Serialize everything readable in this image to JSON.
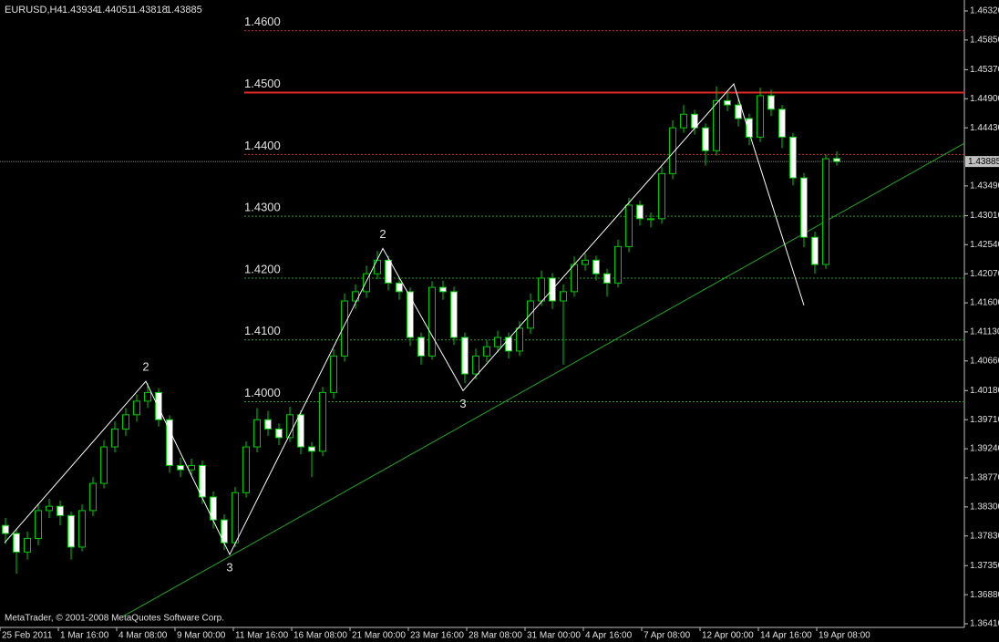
{
  "chart_data": {
    "type": "candlestick",
    "symbol": "EURUSD,H4",
    "footer": "MetaTrader, © 2001-2008 MetaQuotes Software Corp.",
    "up_color": "#000000",
    "down_color": "#ffffff",
    "wick_color": "#00c800",
    "x": [
      1.5,
      4.5,
      7.5,
      10.5,
      13.5,
      16.5,
      19.5,
      22.5,
      25.5,
      28.5,
      31.5,
      34.5,
      37.5,
      40.5,
      43.5,
      46.5,
      49.5,
      52.5,
      55.5,
      58.5,
      61.5,
      64.5,
      67.5,
      70.5,
      73.5,
      76.5,
      79.5,
      82.5,
      85.5,
      88.5,
      91.5,
      94.5,
      97.5,
      100.5,
      103.5,
      106.5,
      109.5,
      112.5,
      115.5,
      118.5,
      121.5,
      124.5,
      127.5,
      130.5,
      133.5,
      136.5,
      139.5,
      142.5,
      145.5,
      148.5,
      151.5,
      154.5,
      157.5,
      160.5,
      163.5,
      166.5,
      169.5,
      172.5,
      175.5,
      178.5,
      181.5,
      184.5,
      187.5,
      190.5,
      193.5,
      196.5,
      199.5,
      202.5,
      205.5,
      208.5,
      211.5,
      214.5,
      217.5,
      220.5,
      223.5,
      226.5,
      229.5
    ],
    "open": [
      1.38,
      1.3787,
      1.3757,
      1.3779,
      1.3824,
      1.3831,
      1.3816,
      1.3765,
      1.3824,
      1.3868,
      1.3927,
      1.3956,
      1.3979,
      1.4001,
      1.4015,
      1.3971,
      1.3897,
      1.389,
      1.3897,
      1.3846,
      1.3809,
      1.3772,
      1.3853,
      1.3927,
      1.3971,
      1.3956,
      1.3942,
      1.3979,
      1.3927,
      1.392,
      1.4015,
      1.4074,
      1.4163,
      1.4178,
      1.4207,
      1.4229,
      1.4192,
      1.4178,
      1.4104,
      1.4074,
      1.4185,
      1.4178,
      1.4104,
      1.4045,
      1.4074,
      1.4089,
      1.4104,
      1.4082,
      1.4119,
      1.4163,
      1.42,
      1.4163,
      1.4178,
      1.4222,
      1.4229,
      1.4207,
      1.4192,
      1.4251,
      1.4318,
      1.4296,
      1.4296,
      1.4369,
      1.4443,
      1.4465,
      1.4443,
      1.4406,
      1.4487,
      1.448,
      1.4458,
      1.4428,
      1.4495,
      1.4473,
      1.4428,
      1.4362,
      1.4266,
      1.4222,
      1.43934
    ],
    "high": [
      1.3812,
      1.3795,
      1.379,
      1.3835,
      1.3843,
      1.384,
      1.3822,
      1.3834,
      1.3878,
      1.3938,
      1.3968,
      1.399,
      1.4012,
      1.403,
      1.4022,
      1.3978,
      1.391,
      1.3908,
      1.3905,
      1.3855,
      1.3818,
      1.3862,
      1.3936,
      1.399,
      1.3985,
      1.3965,
      1.3992,
      1.3986,
      1.3935,
      1.4024,
      1.4085,
      1.4175,
      1.419,
      1.422,
      1.4244,
      1.4236,
      1.42,
      1.4185,
      1.4112,
      1.4195,
      1.4196,
      1.4186,
      1.4112,
      1.4086,
      1.41,
      1.4115,
      1.4112,
      1.413,
      1.4175,
      1.4212,
      1.4208,
      1.419,
      1.4235,
      1.424,
      1.4236,
      1.4215,
      1.4262,
      1.433,
      1.4325,
      1.4306,
      1.438,
      1.4455,
      1.448,
      1.4472,
      1.445,
      1.451,
      1.45,
      1.449,
      1.4466,
      1.4508,
      1.4505,
      1.448,
      1.4435,
      1.437,
      1.4275,
      1.44,
      1.44051
    ],
    "low": [
      1.377,
      1.3722,
      1.3745,
      1.3768,
      1.3812,
      1.38,
      1.3745,
      1.3758,
      1.3815,
      1.386,
      1.3918,
      1.3945,
      1.3968,
      1.399,
      1.396,
      1.3885,
      1.3878,
      1.388,
      1.3835,
      1.3795,
      1.376,
      1.3765,
      1.3845,
      1.3918,
      1.3945,
      1.393,
      1.3935,
      1.3915,
      1.3878,
      1.3912,
      1.4005,
      1.4065,
      1.415,
      1.4168,
      1.4198,
      1.418,
      1.4165,
      1.409,
      1.406,
      1.4068,
      1.4165,
      1.4092,
      1.403,
      1.4036,
      1.4064,
      1.408,
      1.407,
      1.4074,
      1.411,
      1.4155,
      1.415,
      1.406,
      1.417,
      1.4212,
      1.4196,
      1.417,
      1.4185,
      1.4242,
      1.4285,
      1.4282,
      1.4288,
      1.436,
      1.4435,
      1.4432,
      1.4382,
      1.4398,
      1.447,
      1.4445,
      1.4415,
      1.442,
      1.4462,
      1.441,
      1.435,
      1.425,
      1.4207,
      1.4215,
      1.43818
    ],
    "close": [
      1.3787,
      1.3757,
      1.3779,
      1.3824,
      1.3831,
      1.3816,
      1.3765,
      1.3824,
      1.3868,
      1.3927,
      1.3956,
      1.3979,
      1.4001,
      1.4015,
      1.3971,
      1.3897,
      1.389,
      1.3897,
      1.3846,
      1.3809,
      1.3772,
      1.3853,
      1.3927,
      1.3971,
      1.3956,
      1.3942,
      1.3979,
      1.3927,
      1.392,
      1.4015,
      1.4074,
      1.4163,
      1.4178,
      1.4207,
      1.4229,
      1.4192,
      1.4178,
      1.4104,
      1.4074,
      1.4185,
      1.4178,
      1.4104,
      1.4045,
      1.4074,
      1.4089,
      1.4104,
      1.4082,
      1.4119,
      1.4163,
      1.42,
      1.4163,
      1.4178,
      1.4222,
      1.4229,
      1.4207,
      1.4192,
      1.4251,
      1.4318,
      1.4296,
      1.4296,
      1.4369,
      1.4443,
      1.4465,
      1.4443,
      1.4406,
      1.4487,
      1.448,
      1.4458,
      1.4428,
      1.4495,
      1.4473,
      1.4428,
      1.4362,
      1.4266,
      1.4222,
      1.4393,
      1.43885
    ],
    "xlim": [
      0,
      264.5
    ],
    "ylim": [
      1.3641,
      1.4632
    ],
    "xticks": [
      {
        "value": 0,
        "label": "25 Feb 2011"
      },
      {
        "value": 16,
        "label": "1 Mar 16:00"
      },
      {
        "value": 32,
        "label": "4 Mar 08:00"
      },
      {
        "value": 48,
        "label": "9 Mar 00:00"
      },
      {
        "value": 64,
        "label": "11 Mar 16:00"
      },
      {
        "value": 80,
        "label": "16 Mar 08:00"
      },
      {
        "value": 96,
        "label": "21 Mar 00:00"
      },
      {
        "value": 112,
        "label": "23 Mar 16:00"
      },
      {
        "value": 128,
        "label": "28 Mar 08:00"
      },
      {
        "value": 144,
        "label": "31 Mar 00:00"
      },
      {
        "value": 160,
        "label": "4 Apr 16:00"
      },
      {
        "value": 176,
        "label": "7 Apr 08:00"
      },
      {
        "value": 192,
        "label": "12 Apr 00:00"
      },
      {
        "value": 208,
        "label": "14 Apr 16:00"
      },
      {
        "value": 224,
        "label": "19 Apr 08:00"
      }
    ],
    "yticks": [
      {
        "value": 1.4632,
        "label": "1.46320"
      },
      {
        "value": 1.4585,
        "label": "1.45850"
      },
      {
        "value": 1.4537,
        "label": "1.45370"
      },
      {
        "value": 1.449,
        "label": "1.44900"
      },
      {
        "value": 1.4443,
        "label": "1.44430"
      },
      {
        "value": 1.4349,
        "label": "1.43490"
      },
      {
        "value": 1.4301,
        "label": "1.43010"
      },
      {
        "value": 1.4254,
        "label": "1.42540"
      },
      {
        "value": 1.4207,
        "label": "1.42070"
      },
      {
        "value": 1.416,
        "label": "1.41600"
      },
      {
        "value": 1.4113,
        "label": "1.41130"
      },
      {
        "value": 1.4066,
        "label": "1.40660"
      },
      {
        "value": 1.4018,
        "label": "1.40180"
      },
      {
        "value": 1.3971,
        "label": "1.39710"
      },
      {
        "value": 1.3924,
        "label": "1.39240"
      },
      {
        "value": 1.3877,
        "label": "1.38770"
      },
      {
        "value": 1.383,
        "label": "1.38300"
      },
      {
        "value": 1.3783,
        "label": "1.37830"
      },
      {
        "value": 1.3735,
        "label": "1.37350"
      },
      {
        "value": 1.3688,
        "label": "1.36880"
      },
      {
        "value": 1.3641,
        "label": "1.36410"
      }
    ],
    "levels": [
      {
        "value": 1.46,
        "label": "1.4600",
        "color": "#c83232",
        "style": "dotted"
      },
      {
        "value": 1.45,
        "label": "1.4500",
        "color": "#e02828",
        "style": "solid"
      },
      {
        "value": 1.44,
        "label": "1.4400",
        "color": "#c83232",
        "style": "dotted"
      },
      {
        "value": 1.43,
        "label": "1.4300",
        "color": "#2e9a2e",
        "style": "dotted"
      },
      {
        "value": 1.42,
        "label": "1.4200",
        "color": "#2e9a2e",
        "style": "dotted"
      },
      {
        "value": 1.41,
        "label": "1.4100",
        "color": "#2e9a2e",
        "style": "dotted"
      },
      {
        "value": 1.4,
        "label": "1.4000",
        "color": "#2e9a2e",
        "style": "dotted"
      }
    ],
    "trendline": {
      "x": [
        33.75,
        264.5
      ],
      "y": [
        1.3653,
        1.4418
      ],
      "color": "#1fa81f"
    },
    "zigzag": {
      "x": [
        1.25,
        40,
        63,
        105,
        127,
        201.25,
        220.5
      ],
      "y": [
        1.3772,
        1.4033,
        1.3753,
        1.4248,
        1.4018,
        1.4514,
        1.4156
      ],
      "point_labels": [
        null,
        "2",
        "3",
        "2",
        "3",
        null,
        null
      ],
      "color": "#ffffff"
    }
  }
}
